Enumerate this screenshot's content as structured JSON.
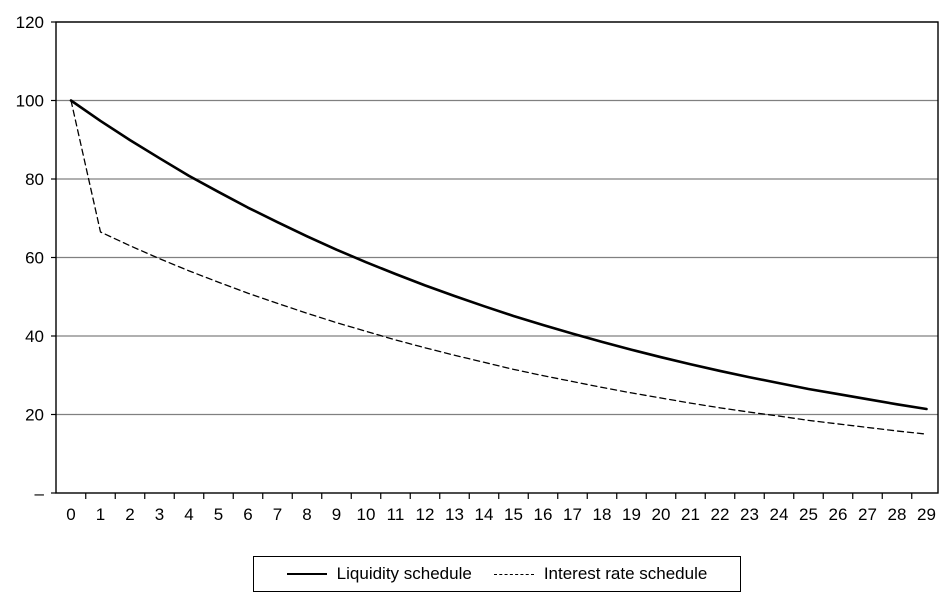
{
  "chart_data": {
    "type": "line",
    "x": [
      0,
      1,
      2,
      3,
      4,
      5,
      6,
      7,
      8,
      9,
      10,
      11,
      12,
      13,
      14,
      15,
      16,
      17,
      18,
      19,
      20,
      21,
      22,
      23,
      24,
      25,
      26,
      27,
      28,
      29
    ],
    "ylim": [
      0,
      120
    ],
    "yticks": [
      "–",
      "20",
      "40",
      "60",
      "80",
      "100",
      "120"
    ],
    "ytick_values": [
      0,
      20,
      40,
      60,
      80,
      100,
      120
    ],
    "grid": true,
    "legend_position": "bottom",
    "series": [
      {
        "name": "Liquidity schedule",
        "style": "solid",
        "color": "#000000",
        "values": [
          100,
          94.8,
          89.9,
          85.3,
          80.8,
          76.7,
          72.7,
          69.0,
          65.4,
          62.0,
          58.8,
          55.8,
          52.9,
          50.2,
          47.6,
          45.1,
          42.8,
          40.6,
          38.5,
          36.5,
          34.6,
          32.8,
          31.1,
          29.5,
          28.0,
          26.5,
          25.2,
          23.9,
          22.6,
          21.4
        ]
      },
      {
        "name": "Interest rate schedule",
        "style": "dashed",
        "color": "#000000",
        "values": [
          100,
          66.5,
          63.0,
          59.7,
          56.6,
          53.7,
          50.9,
          48.3,
          45.8,
          43.4,
          41.2,
          39.0,
          37.0,
          35.1,
          33.3,
          31.5,
          29.9,
          28.4,
          26.9,
          25.5,
          24.2,
          22.9,
          21.7,
          20.6,
          19.6,
          18.5,
          17.6,
          16.7,
          15.8,
          15.0
        ]
      }
    ]
  }
}
